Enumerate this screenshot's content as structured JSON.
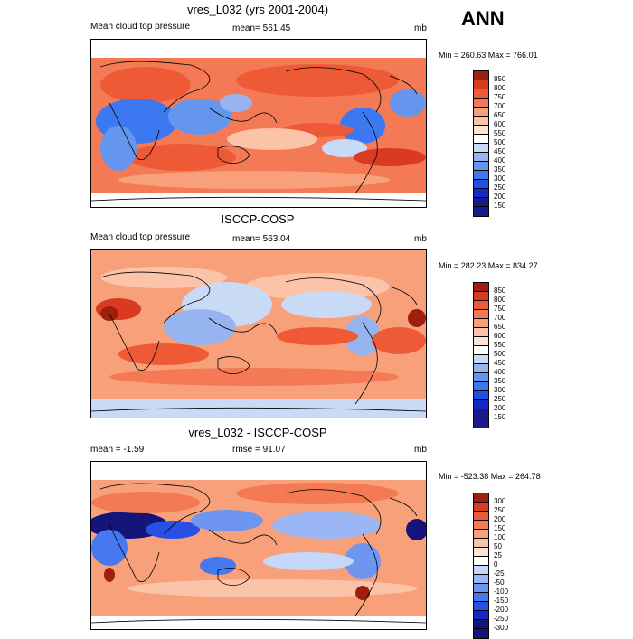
{
  "season_label": "ANN",
  "palettes": {
    "abs": [
      "#1a1a8c",
      "#1428c8",
      "#1e50e6",
      "#3c78f0",
      "#6496f0",
      "#96b4f0",
      "#c8daf5",
      "#ffffff",
      "#fde3d4",
      "#fbc3a8",
      "#f8a07a",
      "#f47a55",
      "#ee5a36",
      "#d93a20",
      "#a01e10"
    ],
    "diff": [
      "#14147a",
      "#1428c8",
      "#2850e6",
      "#4678f0",
      "#6e96f0",
      "#9bb6f5",
      "#c6d8fa",
      "#ffffff",
      "#fde3d4",
      "#fbc3a8",
      "#f8a07a",
      "#f47a55",
      "#ee5a36",
      "#d93a20",
      "#a01e10"
    ]
  },
  "panels": [
    {
      "title": "vres_L032 (yrs 2001-2004)",
      "left_label": "Mean cloud top pressure",
      "center_label": "mean= 561.45",
      "units": "mb",
      "minmax": "Min = 260.63 Max = 766.01",
      "levels": [
        "850",
        "800",
        "750",
        "700",
        "650",
        "600",
        "550",
        "500",
        "450",
        "400",
        "350",
        "300",
        "250",
        "200",
        "150"
      ],
      "kind": "model"
    },
    {
      "title": "ISCCP-COSP",
      "left_label": "Mean cloud top pressure",
      "center_label": "mean= 563.04",
      "units": "mb",
      "minmax": "Min = 282.23 Max = 834.27",
      "levels": [
        "850",
        "800",
        "750",
        "700",
        "650",
        "600",
        "550",
        "500",
        "450",
        "400",
        "350",
        "300",
        "250",
        "200",
        "150"
      ],
      "kind": "obs"
    },
    {
      "title": "vres_L032 - ISCCP-COSP",
      "left_label": "mean =  -1.59",
      "center_label": "rmse =  91.07",
      "units": "mb",
      "minmax": "Min = -523.38 Max = 264.78",
      "levels": [
        "300",
        "250",
        "200",
        "150",
        "100",
        "50",
        "25",
        "0",
        "-25",
        "-50",
        "-100",
        "-150",
        "-200",
        "-250",
        "-300"
      ],
      "kind": "diff"
    }
  ]
}
